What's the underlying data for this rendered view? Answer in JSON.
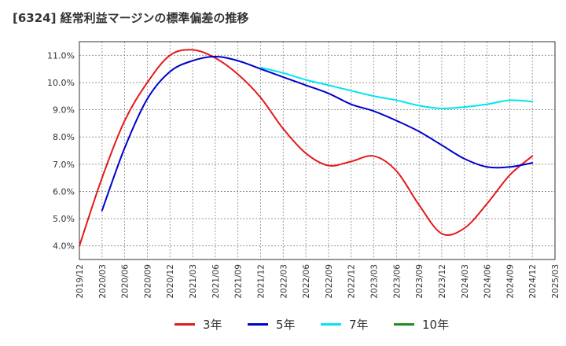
{
  "title": "[6324]  経常利益マージンの標準偏差の推移",
  "chart_data": {
    "type": "line",
    "title": "[6324]  経常利益マージンの標準偏差の推移",
    "xlabel": "",
    "ylabel": "",
    "x_ticks": [
      "2019/12",
      "2020/03",
      "2020/06",
      "2020/09",
      "2020/12",
      "2021/03",
      "2021/06",
      "2021/09",
      "2021/12",
      "2022/03",
      "2022/06",
      "2022/09",
      "2022/12",
      "2023/03",
      "2023/06",
      "2023/09",
      "2023/12",
      "2024/03",
      "2024/06",
      "2024/09",
      "2024/12",
      "2025/03"
    ],
    "y_ticks": [
      "4.0%",
      "5.0%",
      "6.0%",
      "7.0%",
      "8.0%",
      "9.0%",
      "10.0%",
      "11.0%"
    ],
    "ylim": [
      3.5,
      11.5
    ],
    "grid": true,
    "legend_position": "bottom",
    "series": [
      {
        "name": "3年",
        "color": "#e31a1c",
        "x": [
          "2019/12",
          "2020/03",
          "2020/06",
          "2020/09",
          "2020/12",
          "2021/03",
          "2021/06",
          "2021/09",
          "2021/12",
          "2022/03",
          "2022/06",
          "2022/09",
          "2022/12",
          "2023/03",
          "2023/06",
          "2023/09",
          "2023/12",
          "2024/03",
          "2024/06",
          "2024/09",
          "2024/12"
        ],
        "values": [
          4.0,
          6.5,
          8.6,
          10.0,
          11.0,
          11.2,
          10.9,
          10.3,
          9.45,
          8.3,
          7.4,
          6.95,
          7.1,
          7.3,
          6.75,
          5.5,
          4.45,
          4.65,
          5.55,
          6.6,
          7.3
        ]
      },
      {
        "name": "5年",
        "color": "#0000cc",
        "x": [
          "2020/03",
          "2020/06",
          "2020/09",
          "2020/12",
          "2021/03",
          "2021/06",
          "2021/09",
          "2021/12",
          "2022/03",
          "2022/06",
          "2022/09",
          "2022/12",
          "2023/03",
          "2023/06",
          "2023/09",
          "2023/12",
          "2024/03",
          "2024/06",
          "2024/09",
          "2024/12"
        ],
        "values": [
          5.3,
          7.6,
          9.4,
          10.4,
          10.8,
          10.95,
          10.8,
          10.5,
          10.2,
          9.9,
          9.6,
          9.2,
          8.95,
          8.6,
          8.2,
          7.7,
          7.2,
          6.9,
          6.9,
          7.05
        ]
      },
      {
        "name": "7年",
        "color": "#00e5ee",
        "x": [
          "2021/12",
          "2022/03",
          "2022/06",
          "2022/09",
          "2022/12",
          "2023/03",
          "2023/06",
          "2023/09",
          "2023/12",
          "2024/03",
          "2024/06",
          "2024/09",
          "2024/12"
        ],
        "values": [
          10.55,
          10.35,
          10.1,
          9.9,
          9.7,
          9.5,
          9.35,
          9.15,
          9.05,
          9.1,
          9.2,
          9.35,
          9.3
        ]
      },
      {
        "name": "10年",
        "color": "#228b22",
        "x": [],
        "values": []
      }
    ]
  }
}
